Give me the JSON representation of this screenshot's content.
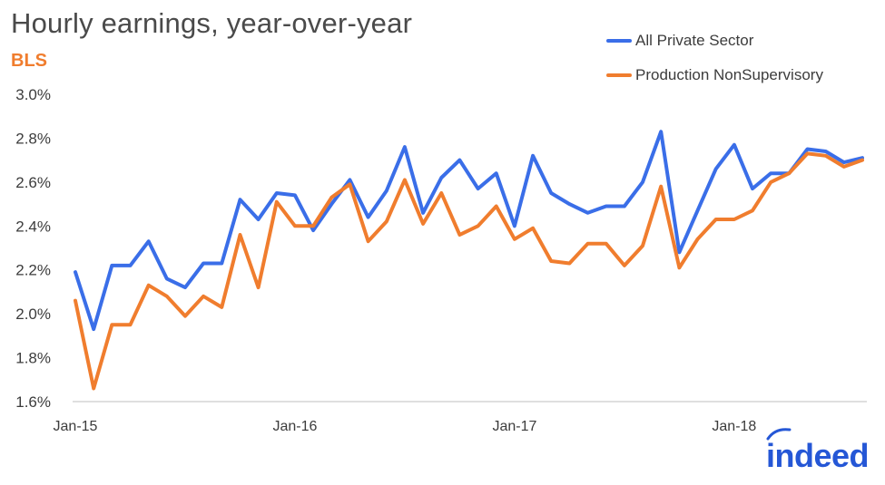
{
  "header": {
    "title": "Hourly earnings, year-over-year",
    "source": "BLS"
  },
  "logo": {
    "text": "indeed",
    "color": "#2557d6"
  },
  "chart_data": {
    "type": "line",
    "title": "Hourly earnings, year-over-year",
    "subtitle": "BLS",
    "xlabel": "",
    "ylabel": "",
    "ylim": [
      1.6,
      3.0
    ],
    "yticks": [
      "1.6%",
      "1.8%",
      "2.0%",
      "2.2%",
      "2.4%",
      "2.6%",
      "2.8%",
      "3.0%"
    ],
    "xticks": [
      "Jan-15",
      "Jan-16",
      "Jan-17",
      "Jan-18"
    ],
    "grid": false,
    "legend_position": "top-right",
    "x": [
      "Jan-15",
      "Feb-15",
      "Mar-15",
      "Apr-15",
      "May-15",
      "Jun-15",
      "Jul-15",
      "Aug-15",
      "Sep-15",
      "Oct-15",
      "Nov-15",
      "Dec-15",
      "Jan-16",
      "Feb-16",
      "Mar-16",
      "Apr-16",
      "May-16",
      "Jun-16",
      "Jul-16",
      "Aug-16",
      "Sep-16",
      "Oct-16",
      "Nov-16",
      "Dec-16",
      "Jan-17",
      "Feb-17",
      "Mar-17",
      "Apr-17",
      "May-17",
      "Jun-17",
      "Jul-17",
      "Aug-17",
      "Sep-17",
      "Oct-17",
      "Nov-17",
      "Dec-17",
      "Jan-18",
      "Feb-18",
      "Mar-18",
      "Apr-18",
      "May-18",
      "Jun-18",
      "Jul-18",
      "Aug-18"
    ],
    "series": [
      {
        "name": "All Private Sector",
        "color": "#3a6ee8",
        "values": [
          2.19,
          1.93,
          2.22,
          2.22,
          2.33,
          2.16,
          2.12,
          2.23,
          2.23,
          2.52,
          2.43,
          2.55,
          2.54,
          2.38,
          2.5,
          2.61,
          2.44,
          2.56,
          2.76,
          2.46,
          2.62,
          2.7,
          2.57,
          2.64,
          2.4,
          2.72,
          2.55,
          2.5,
          2.46,
          2.49,
          2.49,
          2.6,
          2.83,
          2.28,
          2.47,
          2.66,
          2.77,
          2.57,
          2.64,
          2.64,
          2.75,
          2.74,
          2.69,
          2.71
        ]
      },
      {
        "name": "Production NonSupervisory",
        "color": "#f07d2e",
        "values": [
          2.06,
          1.66,
          1.95,
          1.95,
          2.13,
          2.08,
          1.99,
          2.08,
          2.03,
          2.36,
          2.12,
          2.51,
          2.4,
          2.4,
          2.53,
          2.59,
          2.33,
          2.42,
          2.61,
          2.41,
          2.55,
          2.36,
          2.4,
          2.49,
          2.34,
          2.39,
          2.24,
          2.23,
          2.32,
          2.32,
          2.22,
          2.31,
          2.58,
          2.21,
          2.34,
          2.43,
          2.43,
          2.47,
          2.6,
          2.64,
          2.73,
          2.72,
          2.67,
          2.7
        ]
      }
    ]
  }
}
